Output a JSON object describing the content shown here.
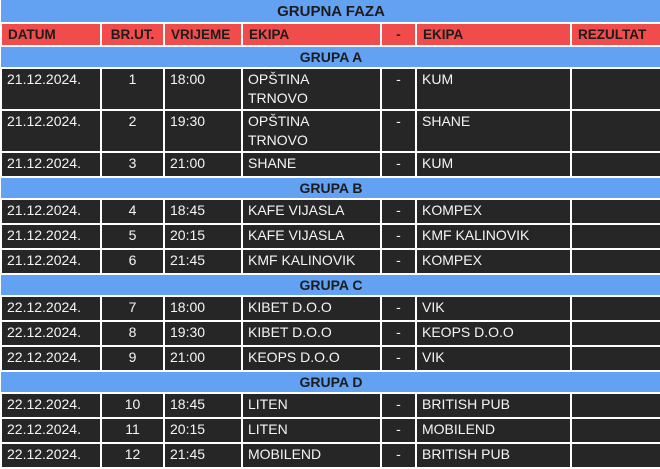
{
  "title": "GRUPNA FAZA",
  "columns": [
    "DATUM",
    "BR.UT.",
    "VRIJEME",
    "EKIPA",
    "-",
    "EKIPA",
    "REZULTAT"
  ],
  "groups": [
    {
      "name": "GRUPA A",
      "matches": [
        {
          "date": "21.12.2024.",
          "no": "1",
          "time": "18:00",
          "home": "OPŠTINA\nTRNOVO",
          "sep": "-",
          "away": "KUM",
          "result": ""
        },
        {
          "date": "21.12.2024.",
          "no": "2",
          "time": "19:30",
          "home": "OPŠTINA\nTRNOVO",
          "sep": "-",
          "away": "SHANE",
          "result": ""
        },
        {
          "date": "21.12.2024.",
          "no": "3",
          "time": "21:00",
          "home": "SHANE",
          "sep": "-",
          "away": "KUM",
          "result": ""
        }
      ]
    },
    {
      "name": "GRUPA B",
      "matches": [
        {
          "date": "21.12.2024.",
          "no": "4",
          "time": "18:45",
          "home": "KAFE VIJASLA",
          "sep": "-",
          "away": "KOMPEX",
          "result": ""
        },
        {
          "date": "21.12.2024.",
          "no": "5",
          "time": "20:15",
          "home": "KAFE VIJASLA",
          "sep": "-",
          "away": "KMF KALINOVIK",
          "result": ""
        },
        {
          "date": "21.12.2024.",
          "no": "6",
          "time": "21:45",
          "home": "KMF KALINOVIK",
          "sep": "-",
          "away": "KOMPEX",
          "result": ""
        }
      ]
    },
    {
      "name": "GRUPA C",
      "matches": [
        {
          "date": "22.12.2024.",
          "no": "7",
          "time": "18:00",
          "home": "KIBET D.O.O",
          "sep": "-",
          "away": "VIK",
          "result": ""
        },
        {
          "date": "22.12.2024.",
          "no": "8",
          "time": "19:30",
          "home": "KIBET D.O.O",
          "sep": "-",
          "away": "KEOPS D.O.O",
          "result": ""
        },
        {
          "date": "22.12.2024.",
          "no": "9",
          "time": "21:00",
          "home": "KEOPS D.O.O",
          "sep": "-",
          "away": "VIK",
          "result": ""
        }
      ]
    },
    {
      "name": "GRUPA D",
      "matches": [
        {
          "date": "22.12.2024.",
          "no": "10",
          "time": "18:45",
          "home": "LITEN",
          "sep": "-",
          "away": "BRITISH PUB",
          "result": ""
        },
        {
          "date": "22.12.2024.",
          "no": "11",
          "time": "20:15",
          "home": "LITEN",
          "sep": "-",
          "away": "MOBILEND",
          "result": ""
        },
        {
          "date": "22.12.2024.",
          "no": "12",
          "time": "21:45",
          "home": "MOBILEND",
          "sep": "-",
          "away": "BRITISH PUB",
          "result": ""
        }
      ]
    }
  ],
  "colors": {
    "band_blue": "#63A1F2",
    "header_red": "#F04C4C",
    "row_background": "#262626",
    "row_text": "#F5F5F5",
    "header_text": "#1C1C1C",
    "grid_border": "#FFFFFF"
  }
}
